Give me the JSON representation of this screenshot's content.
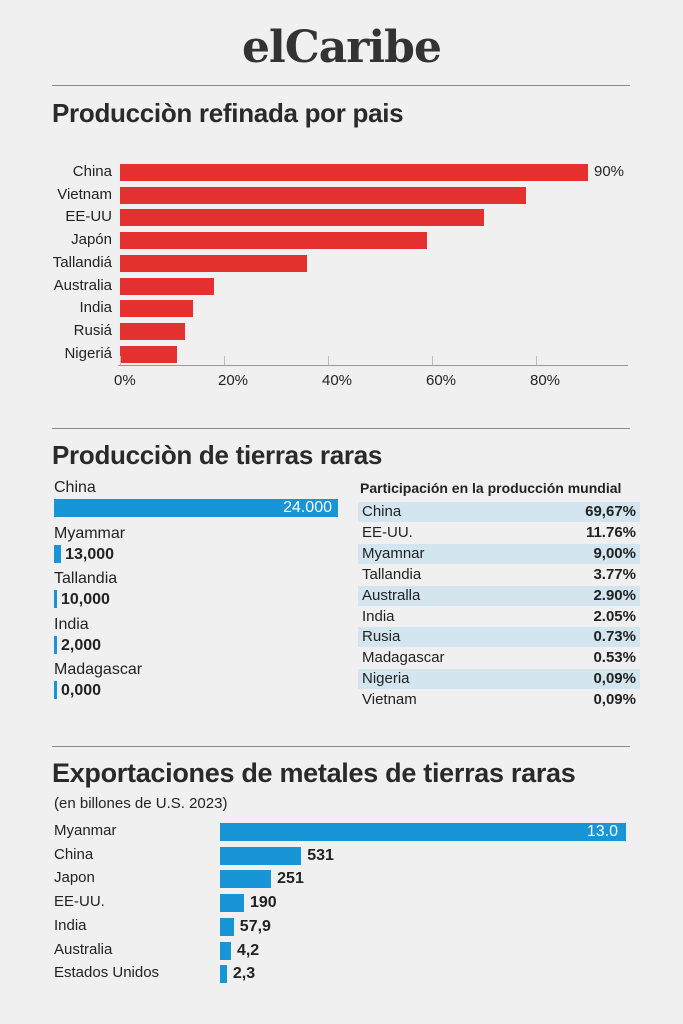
{
  "brand": "elCaribe",
  "chart_data": [
    {
      "type": "bar",
      "orientation": "horizontal",
      "title": "Producciòn refinada por pais",
      "categories": [
        "China",
        "Vietnam",
        "EE-UU",
        "Japón",
        "Tallandiá",
        "Australia",
        "India",
        "Rusiá",
        "Nigeriá"
      ],
      "values": [
        90,
        78,
        70,
        59,
        36,
        18,
        14,
        12.5,
        11
      ],
      "data_labels": {
        "China": "90%"
      },
      "x_ticks": [
        "0%",
        "20%",
        "40%",
        "60%",
        "80%"
      ],
      "xlim": [
        0,
        90
      ],
      "color": "#e53030"
    },
    {
      "type": "bar",
      "orientation": "horizontal",
      "title": "Producciòn de tierras raras",
      "categories": [
        "China",
        "Myammar",
        "Tallandia",
        "India",
        "Madagascar"
      ],
      "value_labels": [
        "24.000",
        "13,000",
        "10,000",
        "2,000",
        "0,000"
      ],
      "bar_fraction": [
        1,
        0.025,
        0.01,
        0.01,
        0.01
      ],
      "color": "#1895d6"
    },
    {
      "type": "table",
      "title": "Participación en la producción mundial",
      "rows": [
        {
          "country": "China",
          "share": "69,67%"
        },
        {
          "country": "EE-UU.",
          "share": "11.76%"
        },
        {
          "country": "Myamnar",
          "share": "9,00%"
        },
        {
          "country": "Tallandia",
          "share": "3.77%"
        },
        {
          "country": "Australla",
          "share": "2.90%"
        },
        {
          "country": "India",
          "share": "2.05%"
        },
        {
          "country": "Rusia",
          "share": "0.73%"
        },
        {
          "country": "Madagascar",
          "share": "0.53%"
        },
        {
          "country": "Nigeria",
          "share": "0,09%"
        },
        {
          "country": "Vietnam",
          "share": "0,09%"
        }
      ],
      "stripe_color": "#d3e5ee"
    },
    {
      "type": "bar",
      "orientation": "horizontal",
      "title": "Exportaciones de metales de tierras raras",
      "subtitle": "(en billones de U.S. 2023)",
      "categories": [
        "Myanmar",
        "China",
        "Japon",
        "EE-UU.",
        "India",
        "Australia",
        "Estados Unidos"
      ],
      "value_labels": [
        "13.0",
        "531",
        "251",
        "190",
        "57,9",
        "4,2",
        "2,3"
      ],
      "bar_fraction": [
        1,
        0.2,
        0.126,
        0.059,
        0.034,
        0.027,
        0.017
      ],
      "color": "#1895d6"
    }
  ]
}
